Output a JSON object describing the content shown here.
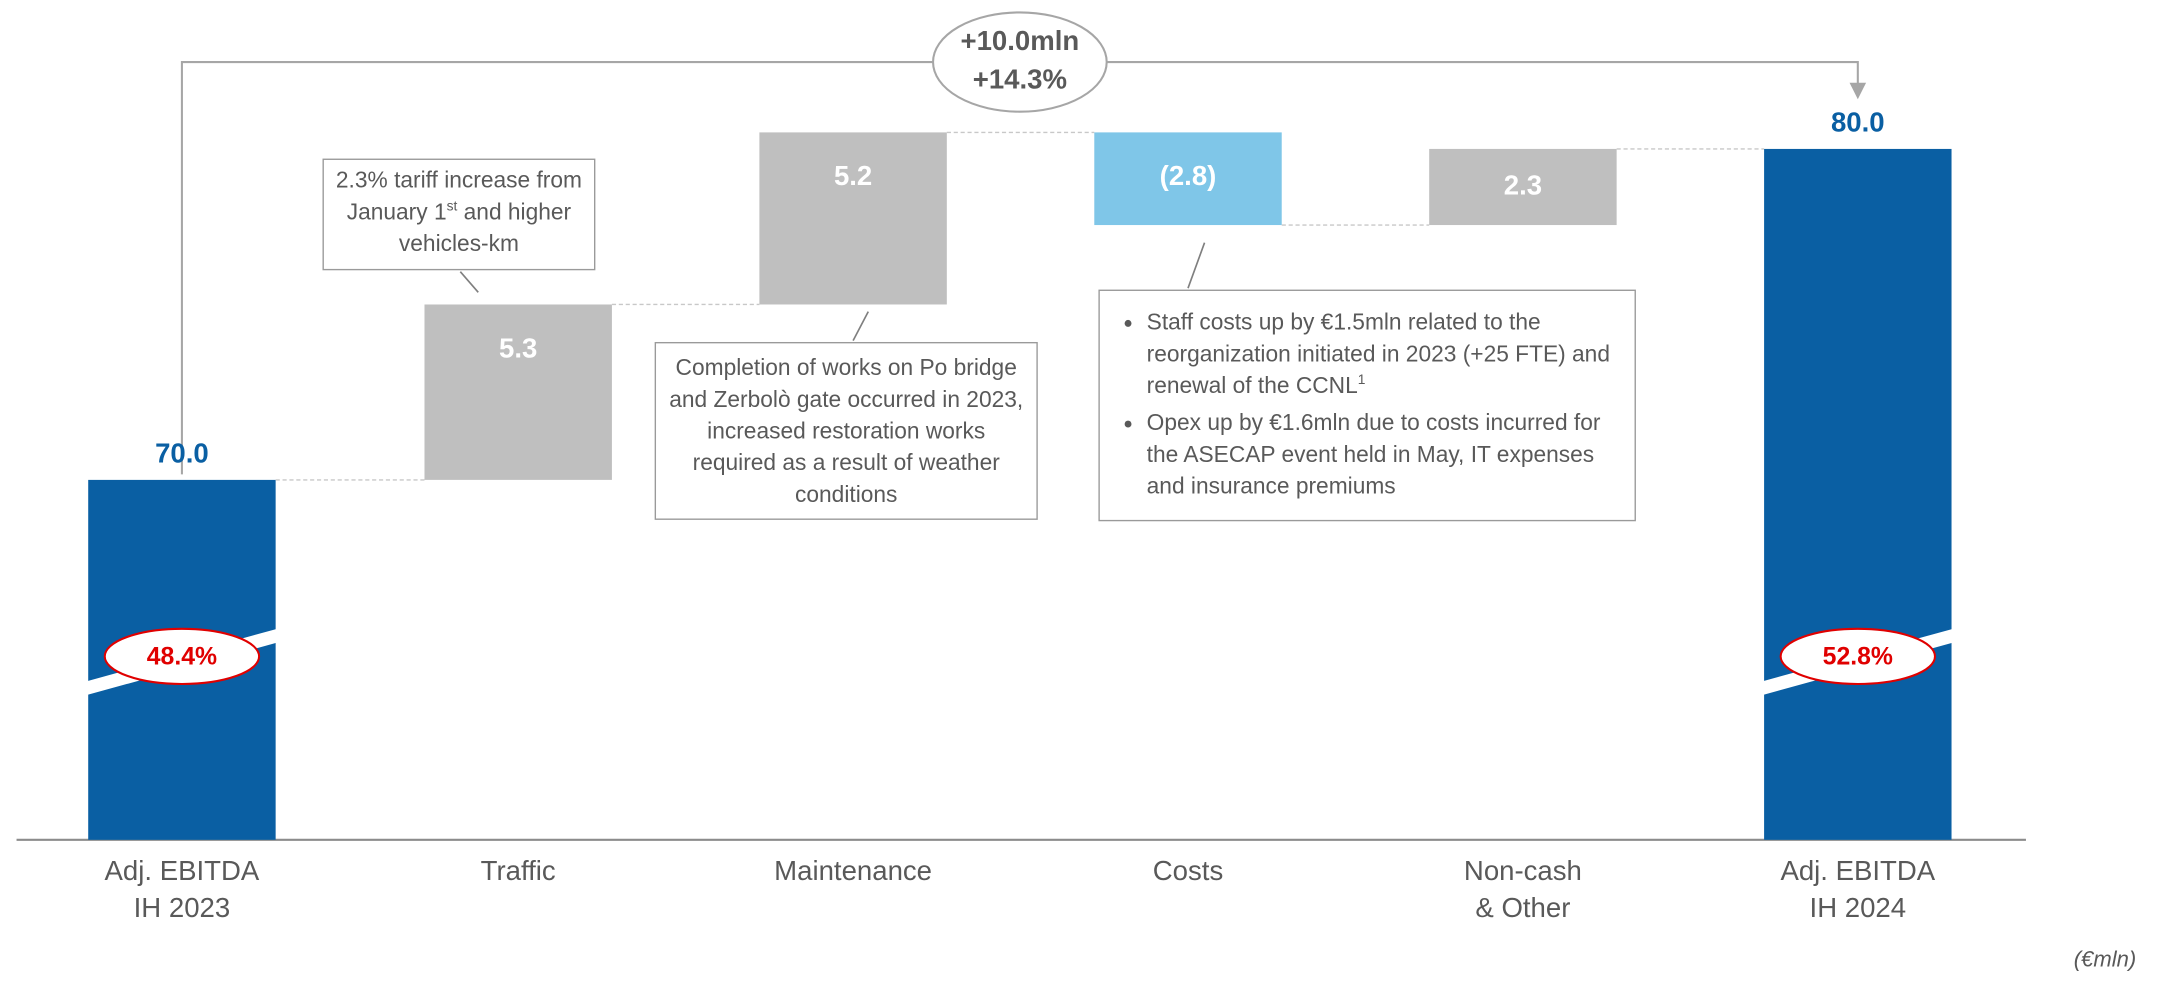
{
  "chart_data": {
    "type": "waterfall",
    "categories": [
      "Adj. EBITDA\nIH 2023",
      "Traffic",
      "Maintenance",
      "Costs",
      "Non-cash\n& Other",
      "Adj. EBITDA\nIH 2024"
    ],
    "measure": [
      "total",
      "relative",
      "relative",
      "relative",
      "relative",
      "total"
    ],
    "values": [
      70.0,
      5.3,
      5.2,
      -2.8,
      2.3,
      80.0
    ],
    "value_labels": [
      "70.0",
      "5.3",
      "5.2",
      "(2.8)",
      "2.3",
      "80.0"
    ],
    "colors": {
      "total": "#0a5fa3",
      "increase": "#bfbfbf",
      "decrease": "#7fc6e8"
    },
    "margins": [
      48.4,
      null,
      null,
      null,
      null,
      52.8
    ],
    "margin_labels": [
      "48.4%",
      null,
      null,
      null,
      null,
      "52.8%"
    ],
    "change": [
      "+10.0mln",
      "+14.3%"
    ],
    "notes": [
      {
        "parts": [
          "2.3% tariff increase from January 1",
          "st",
          " and higher vehicles-km"
        ]
      },
      {
        "parts": [
          "Completion of works on Po bridge and Zerbolò gate occurred in 2023, increased restoration works required as a result of weather conditions"
        ]
      },
      {
        "bullets": [
          {
            "parts": [
              "Staff costs up by €1.5mln related to the reorganization initiated in 2023 (+25 FTE) and renewal of the CCNL",
              "1"
            ]
          },
          {
            "parts": [
              "Opex up by €1.6mln due to costs incurred for the ASECAP event held in May, IT expenses and insurance premiums"
            ]
          }
        ]
      }
    ],
    "unit": "(€mln)"
  }
}
